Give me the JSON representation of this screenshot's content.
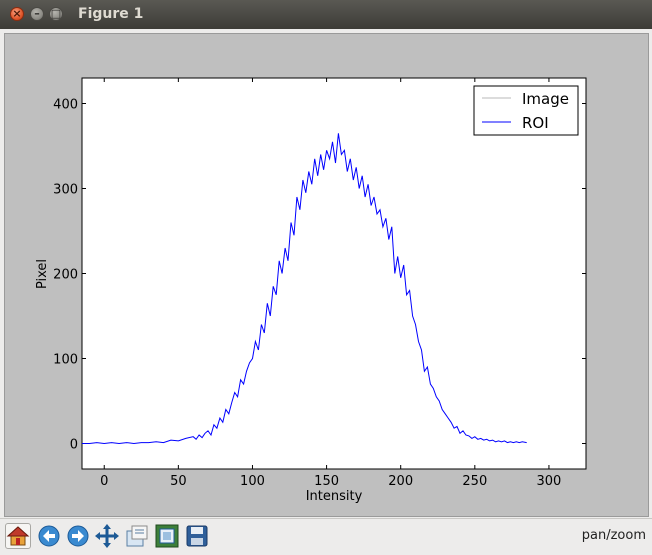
{
  "window": {
    "title": "Figure 1",
    "close_glyph": "×",
    "minimize_glyph": "–",
    "maximize_glyph": "□"
  },
  "toolbar": {
    "tools": [
      "home-icon",
      "back-icon",
      "forward-icon",
      "pan-icon",
      "zoom-icon",
      "subplots-icon",
      "save-icon"
    ],
    "status": "pan/zoom"
  },
  "colors": {
    "roi": "#0000ff",
    "image": "#b8b8b8",
    "canvas_bg": "#bfbfbf"
  },
  "chart_data": {
    "type": "line",
    "title": "",
    "xlabel": "Intensity",
    "ylabel": "Pixel",
    "xlim": [
      -15,
      325
    ],
    "ylim": [
      -30,
      430
    ],
    "xticks": [
      0,
      50,
      100,
      150,
      200,
      250,
      300
    ],
    "yticks": [
      0,
      100,
      200,
      300,
      400
    ],
    "grid": false,
    "legend_position": "top-right",
    "series": [
      {
        "name": "Image",
        "color": "#b8b8b8",
        "x": [],
        "y": []
      },
      {
        "name": "ROI",
        "color": "#0000ff",
        "x": [
          -15,
          -10,
          -5,
          0,
          5,
          10,
          15,
          20,
          25,
          30,
          35,
          40,
          45,
          50,
          55,
          60,
          62,
          64,
          66,
          68,
          70,
          72,
          74,
          76,
          78,
          80,
          82,
          84,
          86,
          88,
          90,
          92,
          94,
          96,
          98,
          100,
          102,
          104,
          106,
          108,
          110,
          112,
          114,
          116,
          118,
          120,
          122,
          124,
          126,
          128,
          130,
          132,
          134,
          136,
          138,
          140,
          142,
          144,
          146,
          148,
          150,
          152,
          154,
          156,
          158,
          160,
          162,
          164,
          166,
          168,
          170,
          172,
          174,
          176,
          178,
          180,
          182,
          184,
          186,
          188,
          190,
          192,
          194,
          196,
          198,
          200,
          202,
          204,
          206,
          208,
          210,
          212,
          214,
          216,
          218,
          220,
          222,
          224,
          226,
          228,
          230,
          232,
          234,
          236,
          238,
          240,
          242,
          244,
          246,
          248,
          250,
          252,
          254,
          256,
          258,
          260,
          262,
          264,
          266,
          268,
          270,
          272,
          274,
          276,
          278,
          280,
          282,
          285
        ],
        "y": [
          0,
          0,
          1,
          0,
          1,
          0,
          1,
          0,
          1,
          1,
          2,
          1,
          4,
          3,
          6,
          8,
          5,
          10,
          7,
          12,
          15,
          10,
          22,
          18,
          30,
          25,
          40,
          35,
          48,
          60,
          55,
          75,
          70,
          85,
          95,
          100,
          120,
          110,
          140,
          130,
          165,
          150,
          185,
          175,
          215,
          200,
          230,
          215,
          260,
          245,
          290,
          275,
          310,
          295,
          320,
          305,
          335,
          315,
          340,
          322,
          345,
          335,
          355,
          330,
          365,
          340,
          345,
          320,
          335,
          310,
          325,
          300,
          315,
          290,
          305,
          280,
          290,
          270,
          275,
          255,
          265,
          240,
          255,
          200,
          220,
          195,
          210,
          175,
          180,
          150,
          140,
          120,
          110,
          85,
          90,
          70,
          65,
          55,
          50,
          40,
          35,
          30,
          25,
          18,
          20,
          12,
          15,
          10,
          9,
          6,
          8,
          5,
          6,
          4,
          5,
          3,
          4,
          2,
          3,
          2,
          3,
          1,
          2,
          1,
          2,
          1,
          2,
          1
        ]
      }
    ]
  }
}
